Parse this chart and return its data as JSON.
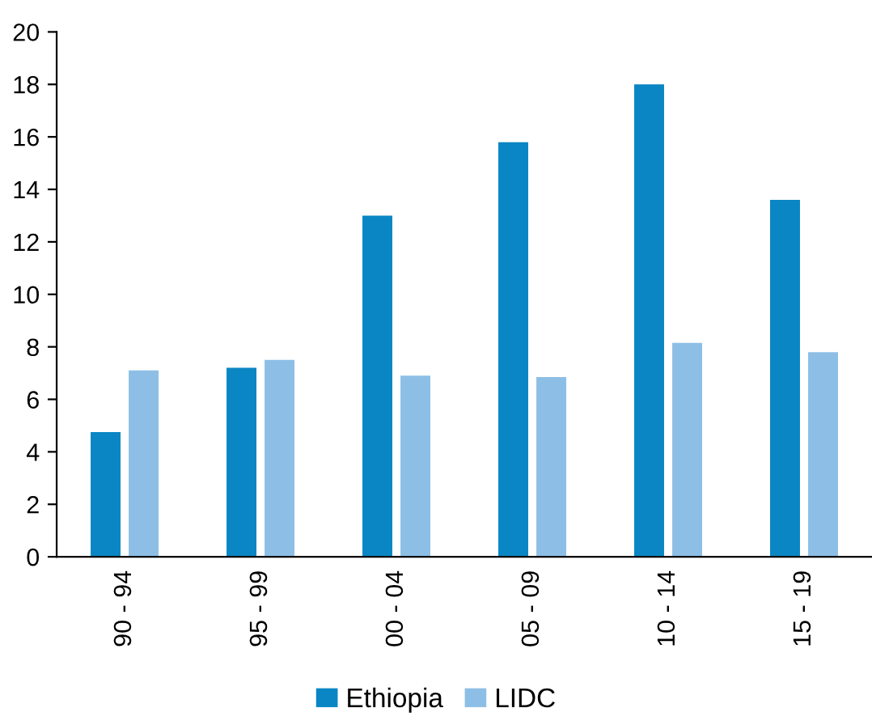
{
  "chart_data": {
    "type": "bar",
    "categories": [
      "90 - 94",
      "95 - 99",
      "00 - 04",
      "05 - 09",
      "10 - 14",
      "15 - 19"
    ],
    "series": [
      {
        "name": "Ethiopia",
        "color": "#0a86c4",
        "values": [
          4.75,
          7.2,
          13.0,
          15.8,
          18.0,
          13.6
        ]
      },
      {
        "name": "LIDC",
        "color": "#8dbfe6",
        "values": [
          7.1,
          7.5,
          6.9,
          6.85,
          8.15,
          7.8
        ]
      }
    ],
    "ylim": [
      0,
      20
    ],
    "yticks": [
      0,
      2,
      4,
      6,
      8,
      10,
      12,
      14,
      16,
      18,
      20
    ],
    "grid": false,
    "legend": "bottom"
  }
}
